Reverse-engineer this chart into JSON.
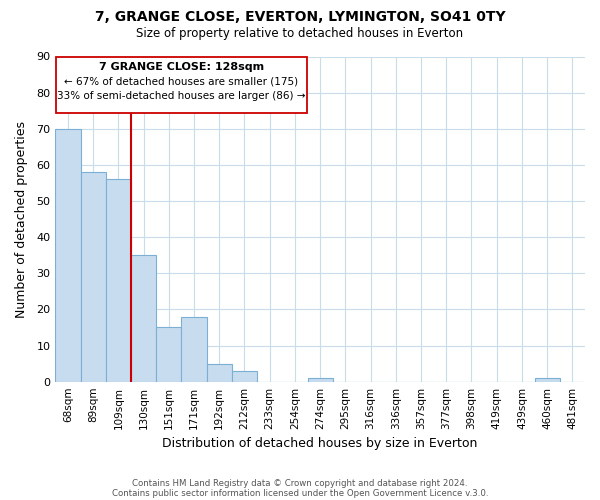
{
  "title": "7, GRANGE CLOSE, EVERTON, LYMINGTON, SO41 0TY",
  "subtitle": "Size of property relative to detached houses in Everton",
  "xlabel": "Distribution of detached houses by size in Everton",
  "ylabel": "Number of detached properties",
  "bar_color": "#c8dcf0",
  "bar_edge_color": "#7bafd4",
  "categories": [
    "68sqm",
    "89sqm",
    "109sqm",
    "130sqm",
    "151sqm",
    "171sqm",
    "192sqm",
    "212sqm",
    "233sqm",
    "254sqm",
    "274sqm",
    "295sqm",
    "316sqm",
    "336sqm",
    "357sqm",
    "377sqm",
    "398sqm",
    "419sqm",
    "439sqm",
    "460sqm",
    "481sqm"
  ],
  "values": [
    70,
    58,
    56,
    35,
    15,
    18,
    5,
    3,
    0,
    0,
    1,
    0,
    0,
    0,
    0,
    0,
    0,
    0,
    0,
    1,
    0
  ],
  "ylim": [
    0,
    90
  ],
  "yticks": [
    0,
    10,
    20,
    30,
    40,
    50,
    60,
    70,
    80,
    90
  ],
  "vline_x": 2.5,
  "vline_color": "#cc0000",
  "annotation_title": "7 GRANGE CLOSE: 128sqm",
  "annotation_line1": "← 67% of detached houses are smaller (175)",
  "annotation_line2": "33% of semi-detached houses are larger (86) →",
  "footer1": "Contains HM Land Registry data © Crown copyright and database right 2024.",
  "footer2": "Contains public sector information licensed under the Open Government Licence v.3.0.",
  "background_color": "#ffffff",
  "grid_color": "#c8dcea"
}
